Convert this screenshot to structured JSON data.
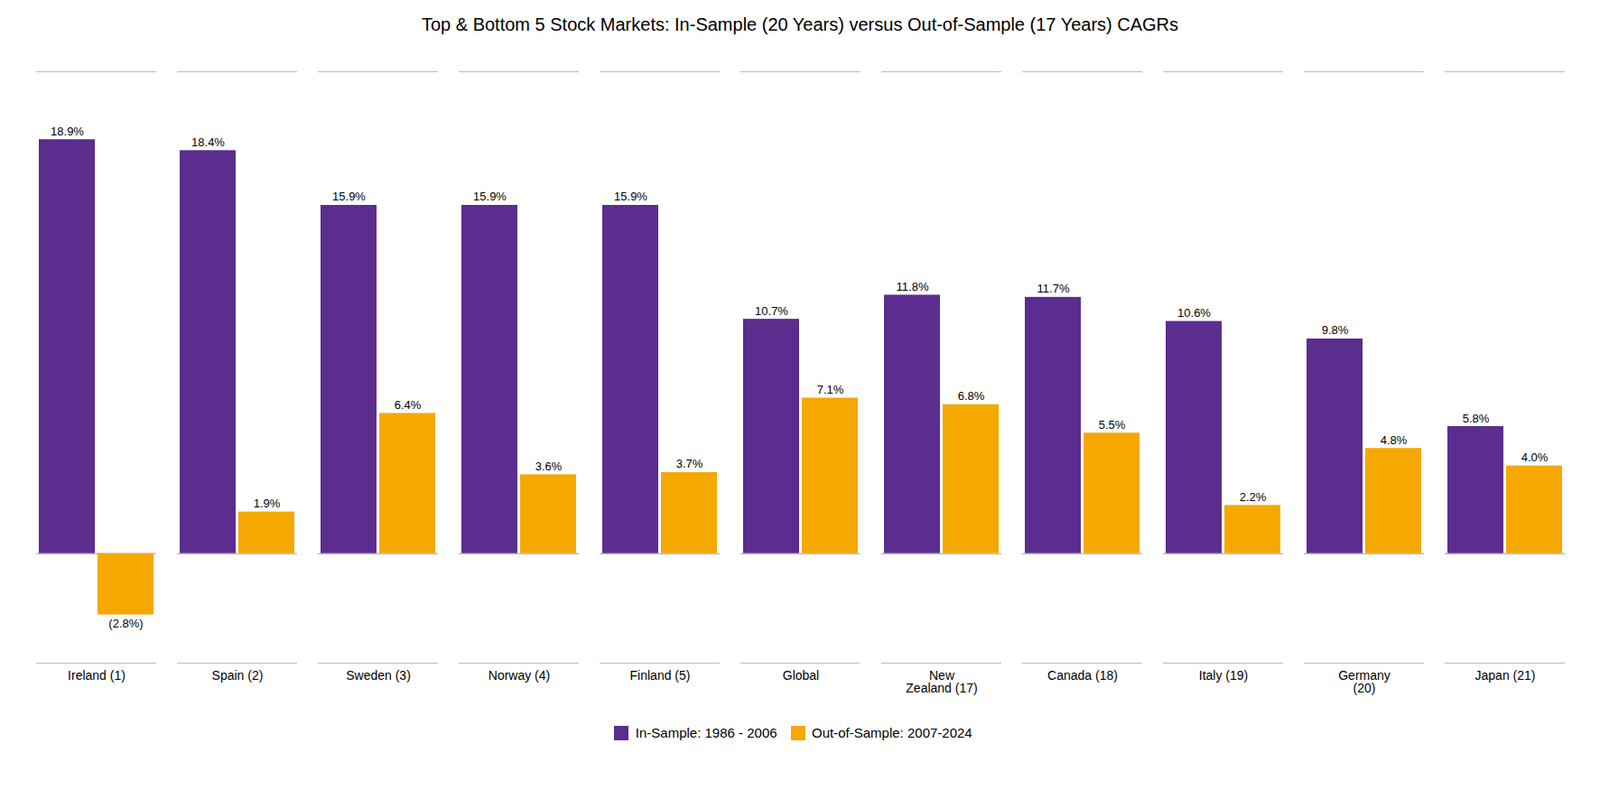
{
  "chart_data": {
    "type": "bar",
    "title": "Top & Bottom 5 Stock Markets: In-Sample (20 Years) versus Out-of-Sample (17 Years) CAGRs",
    "categories": [
      "Ireland (1)",
      "Spain (2)",
      "Sweden (3)",
      "Norway (4)",
      "Finland (5)",
      "Global",
      "New\nZealand (17)",
      "Canada (18)",
      "Italy (19)",
      "Germany\n(20)",
      "Japan (21)"
    ],
    "series": [
      {
        "name": "In-Sample: 1986 - 2006",
        "color": "#5B2D8E",
        "values": [
          18.9,
          18.4,
          15.9,
          15.9,
          15.9,
          10.7,
          11.8,
          11.7,
          10.6,
          9.8,
          5.8
        ],
        "value_labels": [
          "18.9%",
          "18.4%",
          "15.9%",
          "15.9%",
          "15.9%",
          "10.7%",
          "11.8%",
          "11.7%",
          "10.6%",
          "9.8%",
          "5.8%"
        ]
      },
      {
        "name": "Out-of-Sample: 2007-2024",
        "color": "#F5A800",
        "values": [
          -2.8,
          1.9,
          6.4,
          3.6,
          3.7,
          7.1,
          6.8,
          5.5,
          2.2,
          4.8,
          4.0
        ],
        "value_labels": [
          "(2.8%)",
          "1.9%",
          "6.4%",
          "3.6%",
          "3.7%",
          "7.1%",
          "6.8%",
          "5.5%",
          "2.2%",
          "4.8%",
          "4.0%"
        ]
      }
    ],
    "ylim": [
      -5,
      22
    ],
    "grid": false,
    "legend": "bottom",
    "data_labels": true,
    "tick_labels": "x"
  }
}
